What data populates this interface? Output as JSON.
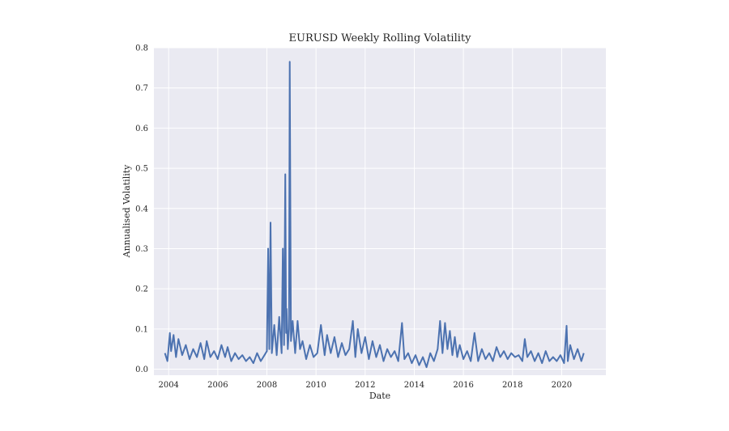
{
  "chart_data": {
    "type": "line",
    "title": "EURUSD Weekly Rolling Volatility",
    "xlabel": "Date",
    "ylabel": "Annualised Volatility",
    "xlim": [
      2003.4,
      2021.8
    ],
    "ylim": [
      -0.015,
      0.8
    ],
    "x_ticks": [
      2004,
      2006,
      2008,
      2010,
      2012,
      2014,
      2016,
      2018,
      2020
    ],
    "x_tick_labels": [
      "2004",
      "2006",
      "2008",
      "2010",
      "2012",
      "2014",
      "2016",
      "2018",
      "2020"
    ],
    "y_ticks": [
      0.0,
      0.1,
      0.2,
      0.3,
      0.4,
      0.5,
      0.6,
      0.7,
      0.8
    ],
    "y_tick_labels": [
      "0.0",
      "0.1",
      "0.2",
      "0.3",
      "0.4",
      "0.5",
      "0.6",
      "0.7",
      "0.8"
    ],
    "grid": true,
    "colors": {
      "line": "#4c72b0",
      "plot_background": "#eaeaf2",
      "grid": "#ffffff"
    },
    "series": [
      {
        "x": [
          2003.85,
          2003.95,
          2004.05,
          2004.1,
          2004.2,
          2004.3,
          2004.4,
          2004.55,
          2004.7,
          2004.85,
          2005.0,
          2005.15,
          2005.3,
          2005.45,
          2005.55,
          2005.7,
          2005.85,
          2006.0,
          2006.15,
          2006.3,
          2006.4,
          2006.55,
          2006.7,
          2006.85,
          2007.0,
          2007.15,
          2007.3,
          2007.45,
          2007.6,
          2007.75,
          2007.9,
          2008.0,
          2008.05,
          2008.1,
          2008.15,
          2008.2,
          2008.3,
          2008.4,
          2008.5,
          2008.6,
          2008.65,
          2008.7,
          2008.75,
          2008.78,
          2008.8,
          2008.85,
          2008.9,
          2008.93,
          2008.98,
          2009.05,
          2009.15,
          2009.25,
          2009.35,
          2009.45,
          2009.6,
          2009.75,
          2009.9,
          2010.05,
          2010.2,
          2010.35,
          2010.45,
          2010.6,
          2010.75,
          2010.9,
          2011.05,
          2011.2,
          2011.35,
          2011.5,
          2011.6,
          2011.7,
          2011.85,
          2012.0,
          2012.15,
          2012.3,
          2012.45,
          2012.6,
          2012.75,
          2012.9,
          2013.05,
          2013.2,
          2013.35,
          2013.5,
          2013.6,
          2013.75,
          2013.9,
          2014.05,
          2014.2,
          2014.35,
          2014.5,
          2014.65,
          2014.8,
          2014.95,
          2015.05,
          2015.15,
          2015.25,
          2015.35,
          2015.45,
          2015.55,
          2015.65,
          2015.75,
          2015.85,
          2016.0,
          2016.15,
          2016.3,
          2016.45,
          2016.6,
          2016.75,
          2016.9,
          2017.05,
          2017.2,
          2017.35,
          2017.5,
          2017.65,
          2017.8,
          2017.95,
          2018.1,
          2018.25,
          2018.4,
          2018.5,
          2018.6,
          2018.75,
          2018.9,
          2019.05,
          2019.2,
          2019.35,
          2019.5,
          2019.65,
          2019.8,
          2019.95,
          2020.1,
          2020.2,
          2020.25,
          2020.35,
          2020.5,
          2020.65,
          2020.8,
          2020.9
        ],
        "values": [
          0.04,
          0.02,
          0.09,
          0.045,
          0.085,
          0.03,
          0.075,
          0.035,
          0.06,
          0.025,
          0.05,
          0.03,
          0.065,
          0.025,
          0.07,
          0.03,
          0.045,
          0.025,
          0.06,
          0.03,
          0.055,
          0.02,
          0.04,
          0.025,
          0.035,
          0.02,
          0.03,
          0.015,
          0.04,
          0.02,
          0.035,
          0.045,
          0.3,
          0.05,
          0.365,
          0.04,
          0.11,
          0.035,
          0.13,
          0.04,
          0.3,
          0.06,
          0.485,
          0.09,
          0.15,
          0.05,
          0.1,
          0.765,
          0.07,
          0.12,
          0.04,
          0.12,
          0.05,
          0.07,
          0.025,
          0.06,
          0.03,
          0.04,
          0.11,
          0.035,
          0.085,
          0.04,
          0.08,
          0.03,
          0.065,
          0.035,
          0.05,
          0.12,
          0.03,
          0.1,
          0.04,
          0.08,
          0.025,
          0.07,
          0.03,
          0.06,
          0.02,
          0.05,
          0.03,
          0.045,
          0.02,
          0.115,
          0.025,
          0.04,
          0.015,
          0.035,
          0.01,
          0.03,
          0.005,
          0.04,
          0.02,
          0.05,
          0.12,
          0.04,
          0.115,
          0.05,
          0.095,
          0.035,
          0.08,
          0.03,
          0.06,
          0.025,
          0.045,
          0.02,
          0.09,
          0.02,
          0.05,
          0.025,
          0.04,
          0.02,
          0.055,
          0.03,
          0.045,
          0.025,
          0.04,
          0.03,
          0.035,
          0.02,
          0.075,
          0.03,
          0.045,
          0.02,
          0.04,
          0.015,
          0.045,
          0.02,
          0.03,
          0.02,
          0.035,
          0.015,
          0.108,
          0.02,
          0.06,
          0.025,
          0.05,
          0.02,
          0.04
        ]
      }
    ]
  }
}
